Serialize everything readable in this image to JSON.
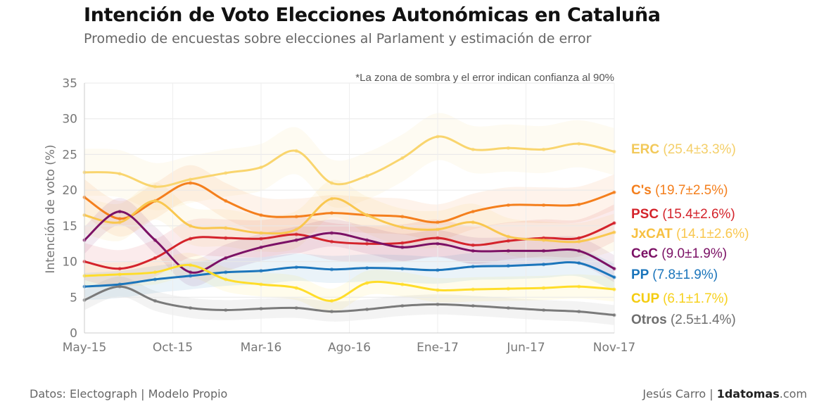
{
  "header": {
    "title": "Intención de Voto Elecciones Autonómicas en Cataluña",
    "subtitle": "Promedio de encuestas sobre elecciones al Parlament y estimación de error"
  },
  "footer": {
    "source": "Datos: Electograph | Modelo Propio",
    "author": "Jesús Carro | ",
    "site_bold": "1datomas",
    "site_rest": ".com"
  },
  "chart_data": {
    "type": "line",
    "title": "Intención de Voto Elecciones Autonómicas en Cataluña",
    "subtitle": "Promedio de encuestas sobre elecciones al Parlament y estimación de error",
    "xlabel": "",
    "ylabel": "Intención de voto (%)",
    "note": "*La zona de sombra y el error indican confianza al 90%",
    "ylim": [
      0,
      35
    ],
    "yticks": [
      0,
      5,
      10,
      15,
      20,
      25,
      30,
      35
    ],
    "xlim": [
      "2015-05",
      "2017-11"
    ],
    "xticks": [
      {
        "x": "2015-05",
        "label": "May-15"
      },
      {
        "x": "2015-10",
        "label": "Oct-15"
      },
      {
        "x": "2016-03",
        "label": "Mar-16"
      },
      {
        "x": "2016-08",
        "label": "Ago-16"
      },
      {
        "x": "2017-01",
        "label": "Ene-17"
      },
      {
        "x": "2017-06",
        "label": "Jun-17"
      },
      {
        "x": "2017-11",
        "label": "Nov-17"
      }
    ],
    "grid": true,
    "legend_position": "right",
    "x": [
      "2015-05",
      "2015-07",
      "2015-09",
      "2015-11",
      "2016-01",
      "2016-03",
      "2016-05",
      "2016-07",
      "2016-09",
      "2016-11",
      "2017-01",
      "2017-03",
      "2017-05",
      "2017-07",
      "2017-09",
      "2017-11"
    ],
    "series": [
      {
        "name": "ERC",
        "label": "ERC",
        "value_text": "(25.4±3.3%)",
        "color": "#f9d56e",
        "label_color": "#f4cf69",
        "bold_color": "#f2c95a",
        "error": 3.3,
        "values": [
          22.5,
          22.3,
          20.5,
          21.5,
          22.4,
          23.2,
          25.5,
          21.0,
          22.0,
          24.5,
          27.5,
          25.7,
          25.9,
          25.7,
          26.5,
          25.4
        ]
      },
      {
        "name": "C's",
        "label": "C's",
        "value_text": "(19.7±2.5%)",
        "color": "#f47f1d",
        "label_color": "#f47f1d",
        "bold_color": "#f47f1d",
        "error": 2.5,
        "values": [
          19.0,
          16.0,
          18.5,
          21.0,
          18.5,
          16.5,
          16.3,
          16.8,
          16.5,
          16.3,
          15.5,
          17.0,
          17.9,
          17.9,
          18.0,
          19.7
        ]
      },
      {
        "name": "PSC",
        "label": "PSC",
        "value_text": "(15.4±2.6%)",
        "color": "#d4232b",
        "label_color": "#d4232b",
        "bold_color": "#d4232b",
        "error": 2.6,
        "values": [
          10.0,
          9.0,
          10.5,
          13.2,
          13.3,
          13.2,
          13.8,
          12.8,
          12.5,
          12.6,
          13.3,
          12.3,
          12.9,
          13.3,
          13.3,
          15.4
        ]
      },
      {
        "name": "JxCAT",
        "label": "JxCAT",
        "value_text": "(14.1±2.6%)",
        "color": "#f9c74f",
        "label_color": "#f9c74f",
        "bold_color": "#f7c040",
        "error": 2.6,
        "values": [
          16.5,
          15.5,
          18.5,
          15.0,
          14.7,
          14.0,
          14.5,
          18.8,
          16.5,
          14.8,
          14.5,
          15.5,
          13.5,
          13.0,
          12.8,
          14.1
        ]
      },
      {
        "name": "CeC",
        "label": "CeC",
        "value_text": "(9.0±1.9%)",
        "color": "#7b1165",
        "label_color": "#7b1165",
        "bold_color": "#7b1165",
        "error": 1.9,
        "values": [
          13.0,
          17.0,
          13.0,
          8.5,
          10.5,
          12.0,
          13.0,
          14.0,
          13.0,
          12.0,
          12.5,
          11.5,
          11.5,
          11.5,
          11.5,
          9.0
        ]
      },
      {
        "name": "PP",
        "label": "PP",
        "value_text": "(7.8±1.9%)",
        "color": "#1b75bb",
        "label_color": "#1b75bb",
        "bold_color": "#1b75bb",
        "error": 1.9,
        "values": [
          6.5,
          6.8,
          7.5,
          8.0,
          8.5,
          8.7,
          9.2,
          8.9,
          9.1,
          9.0,
          8.8,
          9.3,
          9.4,
          9.6,
          9.8,
          7.8
        ]
      },
      {
        "name": "CUP",
        "label": "CUP",
        "value_text": "(6.1±1.7%)",
        "color": "#ffdd2a",
        "label_color": "#f7d11e",
        "bold_color": "#f4cc10",
        "error": 1.7,
        "values": [
          8.0,
          8.2,
          8.5,
          9.5,
          7.5,
          6.8,
          6.3,
          4.5,
          7.0,
          6.8,
          6.0,
          6.1,
          6.2,
          6.3,
          6.5,
          6.1
        ]
      },
      {
        "name": "Otros",
        "label": "Otros",
        "value_text": "(2.5±1.4%)",
        "color": "#7a7a7a",
        "label_color": "#6e6e6e",
        "bold_color": "#6e6e6e",
        "error": 1.4,
        "values": [
          4.6,
          6.5,
          4.5,
          3.5,
          3.2,
          3.4,
          3.5,
          3.0,
          3.3,
          3.8,
          4.0,
          3.8,
          3.5,
          3.2,
          3.0,
          2.5
        ]
      }
    ]
  }
}
